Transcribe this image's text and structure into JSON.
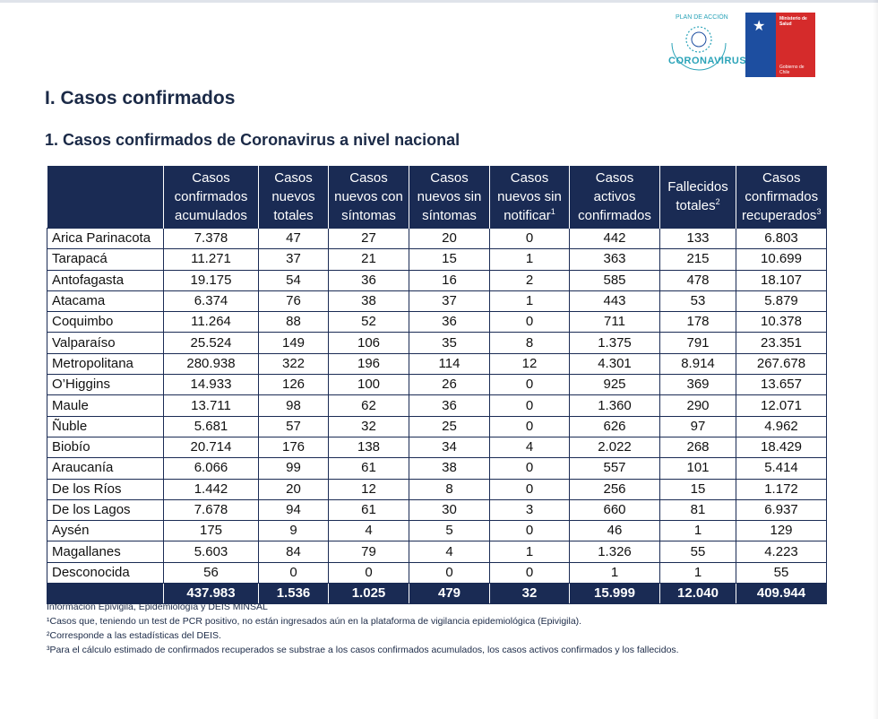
{
  "logos": {
    "corona_text": "CORONAVIRUS",
    "corona_arc_text": "PLAN DE ACCIÓN",
    "minsal_line1": "Ministerio de",
    "minsal_line2": "Salud",
    "minsal_line3": "Gobierno de Chile",
    "colors": {
      "blue": "#1d4ea0",
      "red": "#d52b2b",
      "teal": "#2aa3b8"
    }
  },
  "section_title": "I. Casos confirmados",
  "subsection_title": "1. Casos confirmados de Coronavirus a nivel nacional",
  "table": {
    "headers": [
      {
        "l1": "",
        "l2": "",
        "l3": "",
        "sup": ""
      },
      {
        "l1": "Casos",
        "l2": "confirmados",
        "l3": "acumulados",
        "sup": ""
      },
      {
        "l1": "Casos",
        "l2": "nuevos",
        "l3": "totales",
        "sup": ""
      },
      {
        "l1": "Casos",
        "l2": "nuevos con",
        "l3": "síntomas",
        "sup": ""
      },
      {
        "l1": "Casos",
        "l2": "nuevos sin",
        "l3": "síntomas",
        "sup": ""
      },
      {
        "l1": "Casos",
        "l2": "nuevos sin",
        "l3": "notificar",
        "sup": "1"
      },
      {
        "l1": "Casos",
        "l2": "activos",
        "l3": "confirmados",
        "sup": ""
      },
      {
        "l1": "",
        "l2": "Fallecidos",
        "l3": "totales",
        "sup": "2"
      },
      {
        "l1": "Casos",
        "l2": "confirmados",
        "l3": "recuperados",
        "sup": "3"
      }
    ],
    "rows": [
      [
        "Arica Parinacota",
        "7.378",
        "47",
        "27",
        "20",
        "0",
        "442",
        "133",
        "6.803"
      ],
      [
        "Tarapacá",
        "11.271",
        "37",
        "21",
        "15",
        "1",
        "363",
        "215",
        "10.699"
      ],
      [
        "Antofagasta",
        "19.175",
        "54",
        "36",
        "16",
        "2",
        "585",
        "478",
        "18.107"
      ],
      [
        "Atacama",
        "6.374",
        "76",
        "38",
        "37",
        "1",
        "443",
        "53",
        "5.879"
      ],
      [
        "Coquimbo",
        "11.264",
        "88",
        "52",
        "36",
        "0",
        "711",
        "178",
        "10.378"
      ],
      [
        "Valparaíso",
        "25.524",
        "149",
        "106",
        "35",
        "8",
        "1.375",
        "791",
        "23.351"
      ],
      [
        "Metropolitana",
        "280.938",
        "322",
        "196",
        "114",
        "12",
        "4.301",
        "8.914",
        "267.678"
      ],
      [
        "O’Higgins",
        "14.933",
        "126",
        "100",
        "26",
        "0",
        "925",
        "369",
        "13.657"
      ],
      [
        "Maule",
        "13.711",
        "98",
        "62",
        "36",
        "0",
        "1.360",
        "290",
        "12.071"
      ],
      [
        "Ñuble",
        "5.681",
        "57",
        "32",
        "25",
        "0",
        "626",
        "97",
        "4.962"
      ],
      [
        "Biobío",
        "20.714",
        "176",
        "138",
        "34",
        "4",
        "2.022",
        "268",
        "18.429"
      ],
      [
        "Araucanía",
        "6.066",
        "99",
        "61",
        "38",
        "0",
        "557",
        "101",
        "5.414"
      ],
      [
        "De los Ríos",
        "1.442",
        "20",
        "12",
        "8",
        "0",
        "256",
        "15",
        "1.172"
      ],
      [
        "De los Lagos",
        "7.678",
        "94",
        "61",
        "30",
        "3",
        "660",
        "81",
        "6.937"
      ],
      [
        "Aysén",
        "175",
        "9",
        "4",
        "5",
        "0",
        "46",
        "1",
        "129"
      ],
      [
        "Magallanes",
        "5.603",
        "84",
        "79",
        "4",
        "1",
        "1.326",
        "55",
        "4.223"
      ],
      [
        "Desconocida",
        "56",
        "0",
        "0",
        "0",
        "0",
        "1",
        "1",
        "55"
      ]
    ],
    "total": [
      "",
      "437.983",
      "1.536",
      "1.025",
      "479",
      "32",
      "15.999",
      "12.040",
      "409.944"
    ]
  },
  "notes": [
    "Información Epivigila, Epidemiología y DEIS MINSAL",
    "¹Casos que, teniendo un test de PCR positivo, no están ingresados aún en la plataforma de vigilancia epidemiológica (Epivigila).",
    "²Corresponde a las estadísticas del DEIS.",
    "³Para el cálculo estimado de confirmados recuperados se substrae a los casos confirmados acumulados, los casos activos confirmados y los fallecidos."
  ]
}
